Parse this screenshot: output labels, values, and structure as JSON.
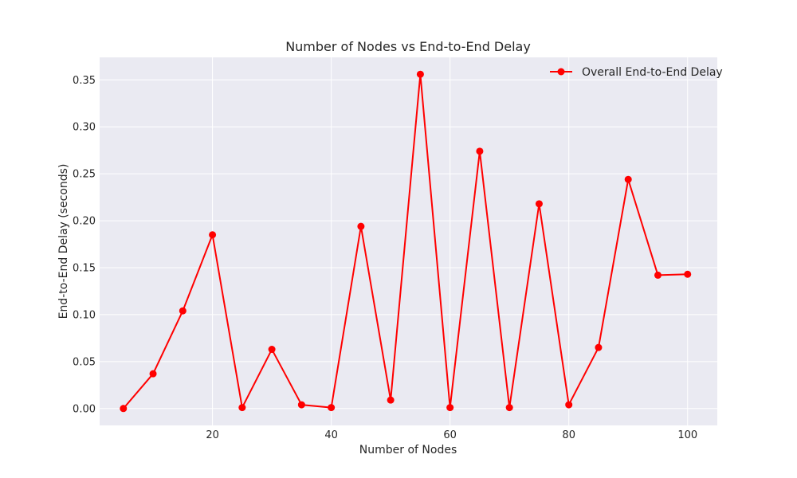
{
  "chart_data": {
    "type": "line",
    "title": "Number of Nodes vs End-to-End Delay",
    "xlabel": "Number of Nodes",
    "ylabel": "End-to-End Delay (seconds)",
    "xlim": [
      1,
      105
    ],
    "ylim": [
      -0.018,
      0.374
    ],
    "xticks": [
      20,
      40,
      60,
      80,
      100
    ],
    "yticks": [
      0.0,
      0.05,
      0.1,
      0.15,
      0.2,
      0.25,
      0.3,
      0.35
    ],
    "ytick_labels": [
      "0.00",
      "0.05",
      "0.10",
      "0.15",
      "0.20",
      "0.25",
      "0.30",
      "0.35"
    ],
    "grid": true,
    "legend_position": "top-right",
    "series": [
      {
        "name": "Overall End-to-End Delay",
        "color": "#ff0000",
        "marker": "circle",
        "x": [
          5,
          10,
          15,
          20,
          25,
          30,
          35,
          40,
          45,
          50,
          55,
          60,
          65,
          70,
          75,
          80,
          85,
          90,
          95,
          100
        ],
        "y": [
          0.0,
          0.037,
          0.104,
          0.185,
          0.001,
          0.063,
          0.004,
          0.001,
          0.194,
          0.009,
          0.356,
          0.001,
          0.274,
          0.001,
          0.218,
          0.004,
          0.065,
          0.244,
          0.142,
          0.143
        ]
      }
    ]
  }
}
